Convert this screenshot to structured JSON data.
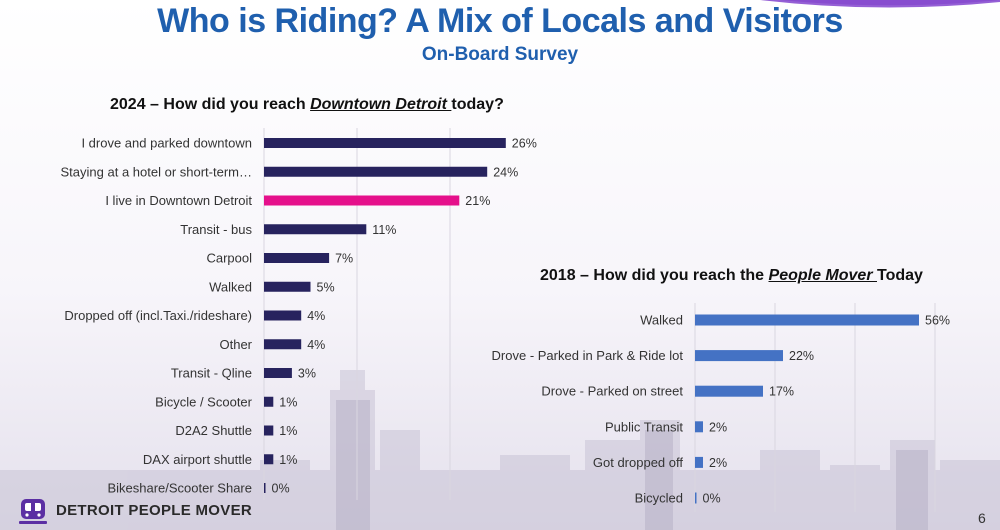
{
  "header": {
    "title": "Who is Riding? A Mix of Locals and Visitors",
    "subtitle": "On-Board Survey"
  },
  "colors": {
    "title": "#1f5fae",
    "bar_2024": "#27235e",
    "bar_2024_highlight": "#e5108b",
    "bar_2018": "#4472c4",
    "accent_swoosh": "#7b3fc4"
  },
  "chart_data": [
    {
      "type": "bar",
      "orientation": "horizontal",
      "title_parts": {
        "prefix": "2024 – How did you reach ",
        "emphasis": "Downtown Detroit ",
        "suffix": "today?"
      },
      "categories": [
        "I drove and parked downtown",
        "Staying at a hotel or short-term…",
        "I live in Downtown Detroit",
        "Transit - bus",
        "Carpool",
        "Walked",
        "Dropped off (incl.Taxi./rideshare)",
        "Other",
        "Transit - Qline",
        "Bicycle / Scooter",
        "D2A2 Shuttle",
        "DAX airport shuttle",
        "Bikeshare/Scooter Share"
      ],
      "values": [
        26,
        24,
        21,
        11,
        7,
        5,
        4,
        4,
        3,
        1,
        1,
        1,
        0
      ],
      "value_labels": [
        "26%",
        "24%",
        "21%",
        "11%",
        "7%",
        "5%",
        "4%",
        "4%",
        "3%",
        "1%",
        "1%",
        "1%",
        "0%"
      ],
      "highlight_index": 2,
      "grid": true
    },
    {
      "type": "bar",
      "orientation": "horizontal",
      "title_parts": {
        "prefix": "2018 – How did you reach the ",
        "emphasis": "People Mover ",
        "suffix": "Today"
      },
      "categories": [
        "Walked",
        "Drove - Parked in Park & Ride lot",
        "Drove - Parked on street",
        "Public Transit",
        "Got dropped off",
        "Bicycled"
      ],
      "values": [
        56,
        22,
        17,
        2,
        2,
        0
      ],
      "value_labels": [
        "56%",
        "22%",
        "17%",
        "2%",
        "2%",
        "0%"
      ],
      "grid": true
    }
  ],
  "footer": {
    "brand": "DETROIT PEOPLE MOVER",
    "page": "6",
    "logo_icon": "people-mover-train-icon"
  }
}
